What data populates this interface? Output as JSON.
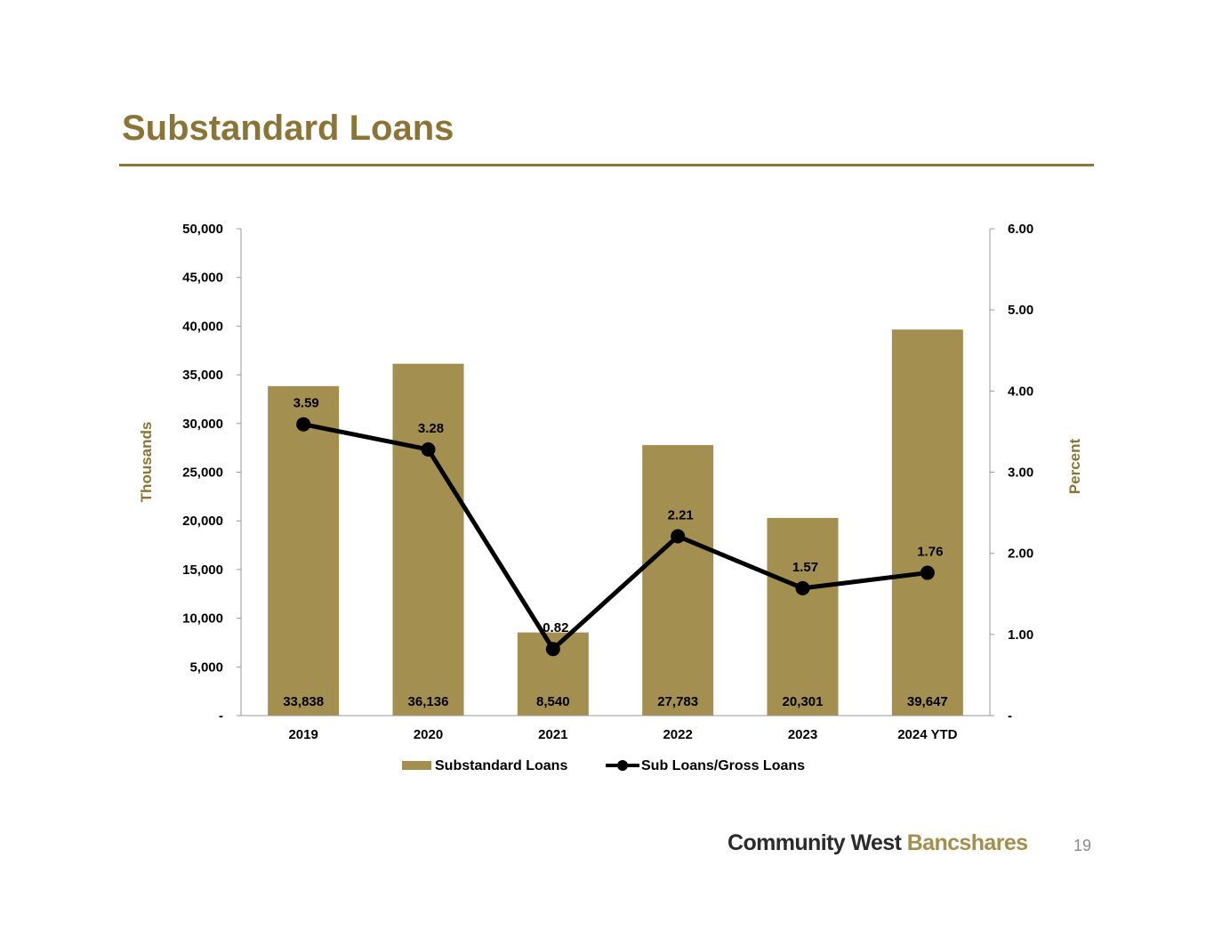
{
  "title": "Substandard Loans",
  "page_number": "19",
  "logo": {
    "part1": "Community West",
    "part2": "Bancshares"
  },
  "colors": {
    "accent": "#8b7536",
    "bar": "#a38f4f",
    "line": "#000000"
  },
  "chart_data": {
    "type": "bar",
    "categories": [
      "2019",
      "2020",
      "2021",
      "2022",
      "2023",
      "2024 YTD"
    ],
    "series": [
      {
        "name": "Substandard Loans",
        "type": "bar",
        "axis": "left",
        "values": [
          33838,
          36136,
          8540,
          27783,
          20301,
          39647
        ],
        "labels": [
          "33,838",
          "36,136",
          "8,540",
          "27,783",
          "20,301",
          "39,647"
        ]
      },
      {
        "name": "Sub Loans/Gross Loans",
        "type": "line",
        "axis": "right",
        "values": [
          3.59,
          3.28,
          0.82,
          2.21,
          1.57,
          1.76
        ],
        "labels": [
          "3.59",
          "3.28",
          "0.82",
          "2.21",
          "1.57",
          "1.76"
        ]
      }
    ],
    "ylabel_left": "Thousands",
    "ylabel_right": "Percent",
    "ylim_left": [
      0,
      50000
    ],
    "ylim_right": [
      0,
      6
    ],
    "yticks_left": [
      "-",
      "5,000",
      "10,000",
      "15,000",
      "20,000",
      "25,000",
      "30,000",
      "35,000",
      "40,000",
      "45,000",
      "50,000"
    ],
    "yticks_right": [
      "-",
      "1.00",
      "2.00",
      "3.00",
      "4.00",
      "5.00",
      "6.00"
    ],
    "legend_position": "bottom",
    "grid": false
  }
}
